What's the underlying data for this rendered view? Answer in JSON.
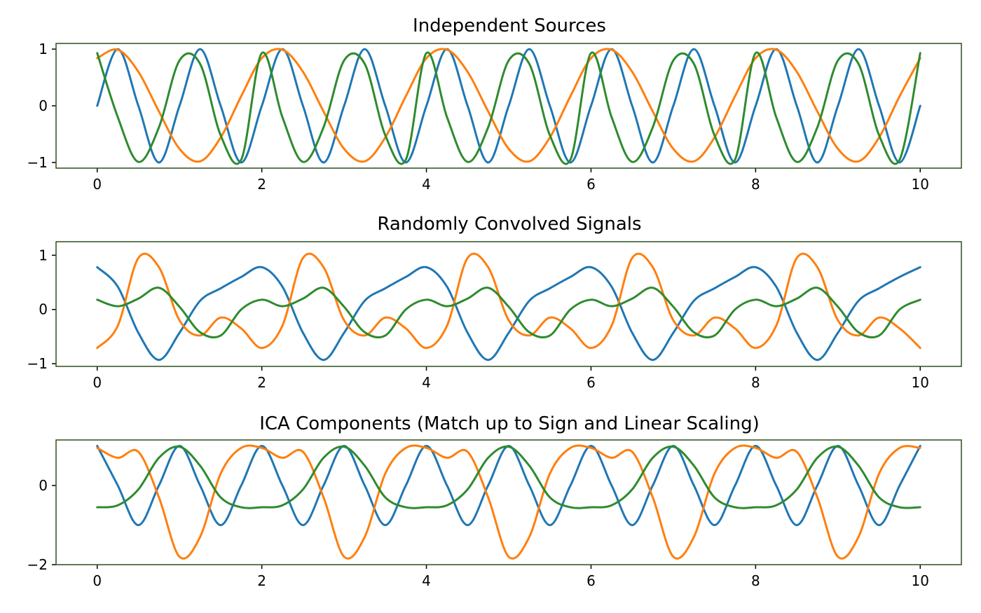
{
  "chart_data": [
    {
      "type": "line",
      "title": "Independent Sources",
      "xlabel": "",
      "ylabel": "",
      "xlim": [
        -0.5,
        10.5
      ],
      "ylim": [
        -1.1,
        1.1
      ],
      "xticks": [
        0,
        2,
        4,
        6,
        8,
        10
      ],
      "xtick_labels": [
        "0",
        "2",
        "4",
        "6",
        "8",
        "10"
      ],
      "yticks": [
        1,
        0,
        -1
      ],
      "ytick_labels": [
        "1",
        "0",
        "−1"
      ],
      "grid": false,
      "legend": null,
      "x": [
        0,
        0.25,
        0.5,
        0.75,
        1,
        1.25,
        1.5,
        1.75,
        2,
        2.25,
        2.5,
        2.75,
        3,
        3.25,
        3.5,
        3.75,
        4,
        4.25,
        4.5,
        4.75,
        5,
        5.25,
        5.5,
        5.75,
        6,
        6.25,
        6.5,
        6.75,
        7,
        7.25,
        7.5,
        7.75,
        8,
        8.25,
        8.5,
        8.75,
        9,
        9.25,
        9.5,
        9.75,
        10
      ],
      "series": [
        {
          "color": "#1f77b4",
          "values": [
            0,
            1,
            0,
            -1,
            0,
            1,
            0,
            -1,
            0,
            1,
            0,
            -1,
            0,
            1,
            0,
            -1,
            0,
            1,
            0,
            -1,
            0,
            1,
            0,
            -1,
            0,
            1,
            0,
            -1,
            0,
            1,
            0,
            -1,
            0,
            1,
            0,
            -1,
            0,
            1,
            0,
            -1,
            0
          ]
        },
        {
          "color": "#ff7f0e",
          "values": [
            0.84,
            0.99,
            0.6,
            -0.1,
            -0.76,
            -0.98,
            -0.56,
            0.17,
            0.84,
            0.99,
            0.6,
            -0.1,
            -0.76,
            -0.98,
            -0.56,
            0.17,
            0.84,
            0.99,
            0.6,
            -0.1,
            -0.76,
            -0.98,
            -0.56,
            0.17,
            0.84,
            0.99,
            0.6,
            -0.1,
            -0.76,
            -0.98,
            -0.56,
            0.17,
            0.84,
            0.99,
            0.6,
            -0.1,
            -0.76,
            -0.98,
            -0.56,
            0.17,
            0.84
          ]
        },
        {
          "color": "#2e8b2e",
          "values": [
            0.93,
            -0.2,
            -0.99,
            -0.38,
            0.8,
            0.74,
            -0.52,
            -0.95,
            0.93,
            -0.2,
            -0.99,
            -0.38,
            0.8,
            0.74,
            -0.52,
            -0.95,
            0.93,
            -0.2,
            -0.99,
            -0.38,
            0.8,
            0.74,
            -0.52,
            -0.95,
            0.93,
            -0.2,
            -0.99,
            -0.38,
            0.8,
            0.74,
            -0.52,
            -0.95,
            0.93,
            -0.2,
            -0.99,
            -0.38,
            0.8,
            0.74,
            -0.52,
            -0.95,
            0.93
          ]
        }
      ]
    },
    {
      "type": "line",
      "title": "Randomly Convolved Signals",
      "xlabel": "",
      "ylabel": "",
      "xlim": [
        -0.5,
        10.5
      ],
      "ylim": [
        -1.05,
        1.25
      ],
      "xticks": [
        0,
        2,
        4,
        6,
        8,
        10
      ],
      "xtick_labels": [
        "0",
        "2",
        "4",
        "6",
        "8",
        "10"
      ],
      "yticks": [
        1,
        0,
        -1
      ],
      "ytick_labels": [
        "1",
        "0",
        "−1"
      ],
      "grid": false,
      "legend": null,
      "x": [
        0,
        0.25,
        0.5,
        0.75,
        1,
        1.25,
        1.5,
        1.75,
        2,
        2.25,
        2.5,
        2.75,
        3,
        3.25,
        3.5,
        3.75,
        4,
        4.25,
        4.5,
        4.75,
        5,
        5.25,
        5.5,
        5.75,
        6,
        6.25,
        6.5,
        6.75,
        7,
        7.25,
        7.5,
        7.75,
        8,
        8.25,
        8.5,
        8.75,
        9,
        9.25,
        9.5,
        9.75,
        10
      ],
      "series": [
        {
          "color": "#1f77b4",
          "values": [
            0.78,
            0.42,
            -0.43,
            -0.93,
            -0.43,
            0.16,
            0.39,
            0.6,
            0.78,
            0.42,
            -0.43,
            -0.93,
            -0.43,
            0.16,
            0.39,
            0.6,
            0.78,
            0.42,
            -0.43,
            -0.93,
            -0.43,
            0.16,
            0.39,
            0.6,
            0.78,
            0.42,
            -0.43,
            -0.93,
            -0.43,
            0.16,
            0.39,
            0.6,
            0.78,
            0.42,
            -0.43,
            -0.93,
            -0.43,
            0.16,
            0.39,
            0.6,
            0.78
          ]
        },
        {
          "color": "#ff7f0e",
          "values": [
            -0.71,
            -0.3,
            0.95,
            0.78,
            -0.2,
            -0.48,
            -0.15,
            -0.35,
            -0.71,
            -0.3,
            0.95,
            0.78,
            -0.2,
            -0.48,
            -0.15,
            -0.35,
            -0.71,
            -0.3,
            0.95,
            0.78,
            -0.2,
            -0.48,
            -0.15,
            -0.35,
            -0.71,
            -0.3,
            0.95,
            0.78,
            -0.2,
            -0.48,
            -0.15,
            -0.35,
            -0.71,
            -0.3,
            0.95,
            0.78,
            -0.2,
            -0.48,
            -0.15,
            -0.35,
            -0.71
          ]
        },
        {
          "color": "#2e8b2e",
          "values": [
            0.18,
            0.06,
            0.2,
            0.4,
            0.05,
            -0.42,
            -0.48,
            0.0,
            0.18,
            0.06,
            0.2,
            0.4,
            0.05,
            -0.42,
            -0.48,
            0.0,
            0.18,
            0.06,
            0.2,
            0.4,
            0.05,
            -0.42,
            -0.48,
            0.0,
            0.18,
            0.06,
            0.2,
            0.4,
            0.05,
            -0.42,
            -0.48,
            0.0,
            0.18,
            0.06,
            0.2,
            0.4,
            0.05,
            -0.42,
            -0.48,
            0.0,
            0.18
          ]
        }
      ]
    },
    {
      "type": "line",
      "title": "ICA Components (Match up to Sign and Linear Scaling)",
      "xlabel": "",
      "ylabel": "",
      "xlim": [
        -0.5,
        10.5
      ],
      "ylim": [
        -2.0,
        1.15
      ],
      "xticks": [
        0,
        2,
        4,
        6,
        8,
        10
      ],
      "xtick_labels": [
        "0",
        "2",
        "4",
        "6",
        "8",
        "10"
      ],
      "yticks": [
        0,
        -2
      ],
      "ytick_labels": [
        "0",
        "−2"
      ],
      "grid": false,
      "legend": null,
      "x": [
        0,
        0.25,
        0.5,
        0.75,
        1,
        1.25,
        1.5,
        1.75,
        2,
        2.25,
        2.5,
        2.75,
        3,
        3.25,
        3.5,
        3.75,
        4,
        4.25,
        4.5,
        4.75,
        5,
        5.25,
        5.5,
        5.75,
        6,
        6.25,
        6.5,
        6.75,
        7,
        7.25,
        7.5,
        7.75,
        8,
        8.25,
        8.5,
        8.75,
        9,
        9.25,
        9.5,
        9.75,
        10
      ],
      "series": [
        {
          "color": "#1f77b4",
          "values": [
            1.0,
            0.0,
            -1.0,
            0.0,
            1.0,
            0.0,
            -1.0,
            0.0,
            1.0,
            0.0,
            -1.0,
            0.0,
            1.0,
            0.0,
            -1.0,
            0.0,
            1.0,
            0.0,
            -1.0,
            0.0,
            1.0,
            0.0,
            -1.0,
            0.0,
            1.0,
            0.0,
            -1.0,
            0.0,
            1.0,
            0.0,
            -1.0,
            0.0,
            1.0,
            0.0,
            -1.0,
            0.0,
            1.0,
            0.0,
            -1.0,
            0.0,
            1.0
          ]
        },
        {
          "color": "#ff7f0e",
          "values": [
            0.95,
            0.7,
            0.85,
            -0.3,
            -1.8,
            -1.3,
            0.3,
            0.95,
            0.95,
            0.7,
            0.85,
            -0.3,
            -1.8,
            -1.3,
            0.3,
            0.95,
            0.95,
            0.7,
            0.85,
            -0.3,
            -1.8,
            -1.3,
            0.3,
            0.95,
            0.95,
            0.7,
            0.85,
            -0.3,
            -1.8,
            -1.3,
            0.3,
            0.95,
            0.95,
            0.7,
            0.85,
            -0.3,
            -1.8,
            -1.3,
            0.3,
            0.95,
            0.95
          ]
        },
        {
          "color": "#2e8b2e",
          "values": [
            -0.55,
            -0.5,
            -0.1,
            0.7,
            0.98,
            0.5,
            -0.3,
            -0.55,
            -0.55,
            -0.5,
            -0.1,
            0.7,
            0.98,
            0.5,
            -0.3,
            -0.55,
            -0.55,
            -0.5,
            -0.1,
            0.7,
            0.98,
            0.5,
            -0.3,
            -0.55,
            -0.55,
            -0.5,
            -0.1,
            0.7,
            0.98,
            0.5,
            -0.3,
            -0.55,
            -0.55,
            -0.5,
            -0.1,
            0.7,
            0.98,
            0.5,
            -0.3,
            -0.55,
            -0.55
          ]
        }
      ]
    }
  ]
}
